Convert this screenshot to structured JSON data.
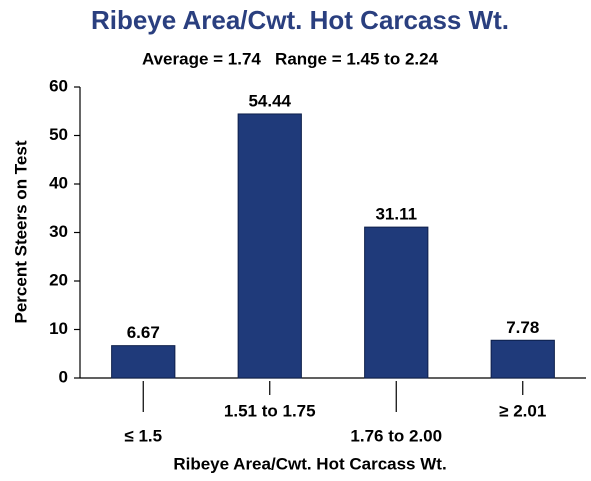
{
  "chart_data": {
    "type": "bar",
    "title": "Ribeye Area/Cwt. Hot Carcass Wt.",
    "subtitle": "Average = 1.74   Range = 1.45 to 2.24",
    "x_label": "Ribeye Area/Cwt. Hot Carcass Wt.",
    "y_label": "Percent Steers on Test",
    "categories": [
      "≤ 1.5",
      "1.51 to 1.75",
      "1.76 to 2.00",
      "≥ 2.01"
    ],
    "values": [
      6.67,
      54.44,
      31.11,
      7.78
    ],
    "color": "#1f3a7a",
    "ylim": [
      0,
      60
    ],
    "yticks": [
      0,
      10,
      20,
      30,
      40,
      50,
      60
    ],
    "grid": false
  }
}
